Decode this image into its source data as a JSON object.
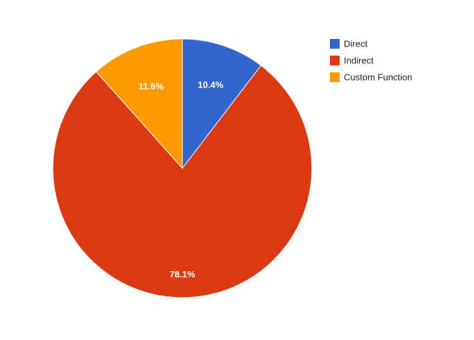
{
  "chart_data": {
    "type": "pie",
    "title": "",
    "slices": [
      {
        "label": "Direct",
        "value": 10.4,
        "display": "10.4%",
        "color": "#3366cc"
      },
      {
        "label": "Indirect",
        "value": 78.1,
        "display": "78.1%",
        "color": "#dc3912"
      },
      {
        "label": "Custom Function",
        "value": 11.6,
        "display": "11.6%",
        "color": "#ff9900"
      }
    ],
    "legend_position": "right",
    "slice_order": "clockwise-from-top",
    "slice_border_color": "#ffffff"
  }
}
